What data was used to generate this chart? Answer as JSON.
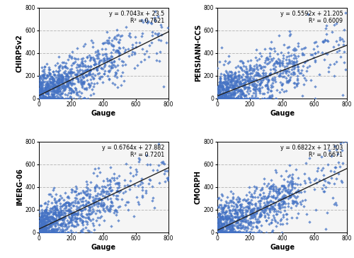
{
  "subplots": [
    {
      "ylabel": "CHIRPSv2",
      "xlabel": "Gauge",
      "slope": 0.7043,
      "intercept": 23.5,
      "r2": 0.7621,
      "eq_text": "y = 0.7043x + 23.5",
      "r2_text": "R² = 0.7621",
      "seed": 42,
      "noise_std": 95
    },
    {
      "ylabel": "PERSIANN-CCS",
      "xlabel": "Gauge",
      "slope": 0.5592,
      "intercept": 21.205,
      "r2": 0.6009,
      "eq_text": "y = 0.5592x + 21.205",
      "r2_text": "R² = 0.6009",
      "seed": 123,
      "noise_std": 115
    },
    {
      "ylabel": "IMERG-06",
      "xlabel": "Gauge",
      "slope": 0.6764,
      "intercept": 27.882,
      "r2": 0.7201,
      "eq_text": "y = 0.6764x + 27.882",
      "r2_text": "R² = 0.7201",
      "seed": 77,
      "noise_std": 100
    },
    {
      "ylabel": "CMORPH",
      "xlabel": "Gauge",
      "slope": 0.6822,
      "intercept": 17.303,
      "r2": 0.6671,
      "eq_text": "y = 0.6822x + 17.303",
      "r2_text": "R² = 0.6671",
      "seed": 88,
      "noise_std": 105
    }
  ],
  "scatter_color": "#4472C4",
  "line_color": "#222222",
  "marker": "D",
  "marker_size": 5,
  "xlim": [
    0,
    800
  ],
  "ylim": [
    0,
    800
  ],
  "xticks": [
    0,
    200,
    400,
    600,
    800
  ],
  "yticks": [
    0,
    200,
    400,
    600,
    800
  ],
  "grid_color": "#bbbbbb",
  "grid_style": "--",
  "n_points": 900,
  "bg_color": "#f5f5f5"
}
